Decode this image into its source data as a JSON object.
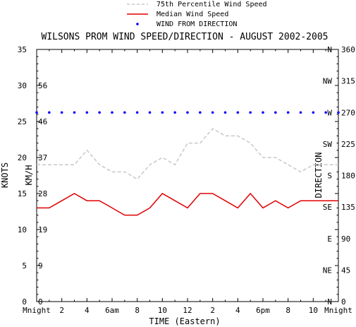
{
  "chart_data": {
    "type": "line",
    "title": "WILSONS PROM WIND SPEED/DIRECTION - AUGUST 2002-2005",
    "xlabel": "TIME (Eastern)",
    "ylabel_left_outer": "KNOTS",
    "ylabel_left_inner": "KM/H",
    "ylabel_right": "DIRECTION",
    "x": [
      0,
      1,
      2,
      3,
      4,
      5,
      6,
      7,
      8,
      9,
      10,
      11,
      12,
      13,
      14,
      15,
      16,
      17,
      18,
      19,
      20,
      21,
      22,
      23,
      24
    ],
    "x_tick_labels": [
      "Mnight",
      "2",
      "4",
      "6am",
      "8",
      "10",
      "12",
      "2",
      "4",
      "6pm",
      "8",
      "10",
      "Mnight"
    ],
    "xlim": [
      0,
      24
    ],
    "ylim": [
      0,
      35
    ],
    "knots_ticks": [
      "0",
      "5",
      "10",
      "15",
      "20",
      "25",
      "30",
      "35"
    ],
    "kmh_ticks": [
      "0",
      "9",
      "19",
      "28",
      "37",
      "46",
      "56"
    ],
    "direction_ticks": [
      {
        "deg": "0",
        "compass": "N"
      },
      {
        "deg": "45",
        "compass": "NE"
      },
      {
        "deg": "90",
        "compass": "E"
      },
      {
        "deg": "135",
        "compass": "SE"
      },
      {
        "deg": "180",
        "compass": "S"
      },
      {
        "deg": "225",
        "compass": "SW"
      },
      {
        "deg": "270",
        "compass": "W"
      },
      {
        "deg": "315",
        "compass": "NW"
      },
      {
        "deg": "360",
        "compass": "N"
      }
    ],
    "dirlim": [
      0,
      360
    ],
    "grid": false,
    "legend_position": "top-center",
    "series": [
      {
        "name": "75th Percentile Wind Speed",
        "style": "dashed",
        "color": "#c8c8c8",
        "values": [
          19,
          19,
          19,
          19,
          21,
          19,
          18,
          18,
          17,
          19,
          20,
          19,
          22,
          22,
          24,
          23,
          23,
          22,
          20,
          20,
          19,
          18,
          19,
          19,
          19
        ]
      },
      {
        "name": "Median Wind Speed",
        "style": "solid",
        "color": "#e00000",
        "values": [
          13,
          13,
          14,
          15,
          14,
          14,
          13,
          12,
          12,
          13,
          15,
          14,
          13,
          15,
          15,
          14,
          13,
          15,
          13,
          14,
          13,
          14,
          14,
          14,
          14
        ]
      },
      {
        "name": "WIND FROM DIRECTION",
        "style": "dots",
        "color": "#0000ff",
        "axis": "direction",
        "values": [
          270,
          270,
          270,
          270,
          270,
          270,
          270,
          270,
          270,
          270,
          270,
          270,
          270,
          270,
          270,
          270,
          270,
          270,
          270,
          270,
          270,
          270,
          270,
          270,
          270
        ]
      }
    ]
  }
}
